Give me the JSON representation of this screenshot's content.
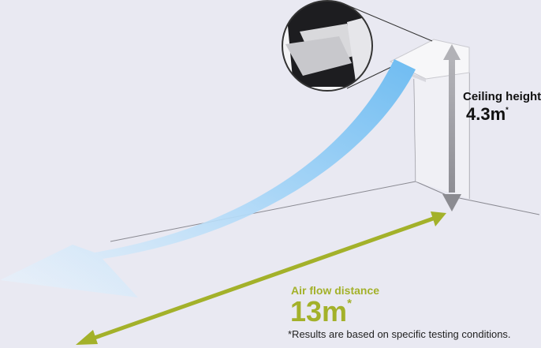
{
  "ceiling": {
    "label": "Ceiling height",
    "value": "4.3m",
    "mark": "*"
  },
  "airflow": {
    "label": "Air flow distance",
    "value": "13m",
    "mark": "*"
  },
  "footnote": "*Results are based on specific testing conditions.",
  "colors": {
    "background": "#e9e9f2",
    "airflow_green": "#a3b12a",
    "airflow_blue": "#7ec3f3",
    "height_arrow": "#9b9ba0"
  }
}
